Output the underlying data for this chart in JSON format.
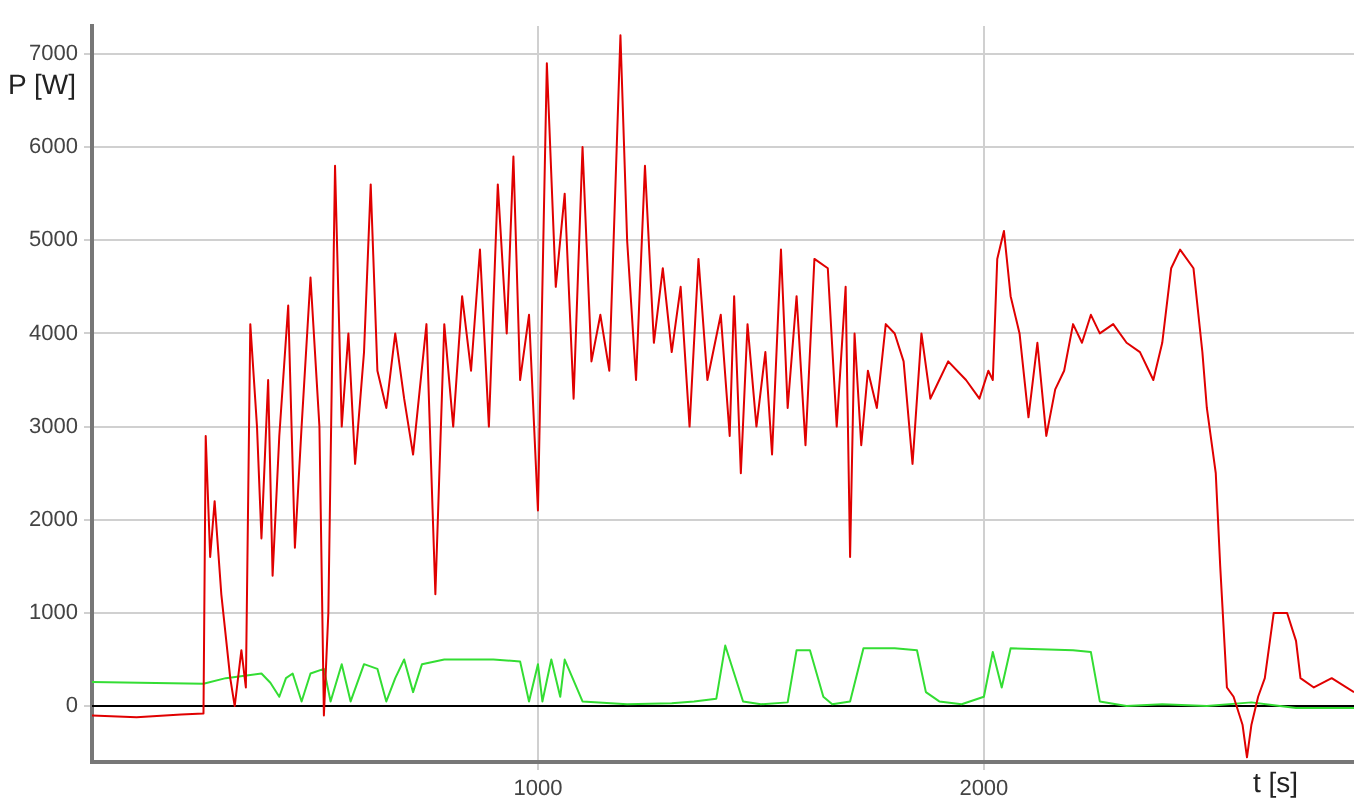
{
  "chart_data": {
    "type": "line",
    "xlabel": "t [s]",
    "ylabel": "P [W]",
    "xlim": [
      0,
      2830
    ],
    "ylim": [
      -600,
      7300
    ],
    "xticks": [
      1000,
      2000
    ],
    "yticks": [
      0,
      1000,
      2000,
      3000,
      4000,
      5000,
      6000,
      7000
    ],
    "grid": true,
    "legend": false,
    "marker": "none",
    "line_style": "solid",
    "ref_lines": [
      {
        "axis": "y",
        "value": 0,
        "color": "#000000"
      }
    ],
    "series": [
      {
        "color": "#e00000",
        "x": [
          0,
          100,
          200,
          250,
          255,
          265,
          275,
          290,
          310,
          320,
          335,
          345,
          355,
          370,
          380,
          395,
          405,
          420,
          440,
          455,
          470,
          490,
          510,
          520,
          530,
          545,
          560,
          575,
          590,
          610,
          625,
          640,
          660,
          680,
          700,
          720,
          750,
          770,
          790,
          810,
          830,
          850,
          870,
          890,
          910,
          930,
          945,
          960,
          980,
          1000,
          1020,
          1040,
          1060,
          1080,
          1100,
          1120,
          1140,
          1160,
          1185,
          1200,
          1220,
          1240,
          1260,
          1280,
          1300,
          1320,
          1340,
          1360,
          1380,
          1410,
          1430,
          1440,
          1455,
          1470,
          1490,
          1510,
          1525,
          1545,
          1560,
          1580,
          1600,
          1620,
          1650,
          1670,
          1690,
          1700,
          1710,
          1725,
          1740,
          1760,
          1780,
          1800,
          1820,
          1840,
          1860,
          1880,
          1900,
          1920,
          1960,
          1990,
          2010,
          2020,
          2030,
          2045,
          2060,
          2080,
          2100,
          2120,
          2140,
          2160,
          2180,
          2200,
          2220,
          2240,
          2260,
          2290,
          2320,
          2350,
          2380,
          2400,
          2420,
          2440,
          2470,
          2490,
          2500,
          2520,
          2530,
          2545,
          2560,
          2580,
          2590,
          2600,
          2615,
          2630,
          2650,
          2680,
          2700,
          2710,
          2740,
          2780,
          2830
        ],
        "values": [
          -100,
          -120,
          -90,
          -80,
          2900,
          1600,
          2200,
          1200,
          300,
          0,
          600,
          200,
          4100,
          3000,
          1800,
          3500,
          1400,
          2900,
          4300,
          1700,
          3000,
          4600,
          3000,
          -100,
          1000,
          5800,
          3000,
          4000,
          2600,
          3800,
          5600,
          3600,
          3200,
          4000,
          3300,
          2700,
          4100,
          1200,
          4100,
          3000,
          4400,
          3600,
          4900,
          3000,
          5600,
          4000,
          5900,
          3500,
          4200,
          2100,
          6900,
          4500,
          5500,
          3300,
          6000,
          3700,
          4200,
          3600,
          7200,
          5000,
          3500,
          5800,
          3900,
          4700,
          3800,
          4500,
          3000,
          4800,
          3500,
          4200,
          2900,
          4400,
          2500,
          4100,
          3000,
          3800,
          2700,
          4900,
          3200,
          4400,
          2800,
          4800,
          4700,
          3000,
          4500,
          1600,
          4000,
          2800,
          3600,
          3200,
          4100,
          4000,
          3700,
          2600,
          4000,
          3300,
          3500,
          3700,
          3500,
          3300,
          3600,
          3500,
          4800,
          5100,
          4400,
          4000,
          3100,
          3900,
          2900,
          3400,
          3600,
          4100,
          3900,
          4200,
          4000,
          4100,
          3900,
          3800,
          3500,
          3900,
          4700,
          4900,
          4700,
          3800,
          3200,
          2500,
          1500,
          200,
          100,
          -200,
          -550,
          -200,
          100,
          300,
          1000,
          1000,
          700,
          300,
          200,
          300,
          150
        ]
      },
      {
        "color": "#33dd33",
        "x": [
          0,
          250,
          300,
          380,
          400,
          420,
          435,
          450,
          470,
          490,
          520,
          535,
          560,
          580,
          610,
          640,
          660,
          680,
          700,
          720,
          740,
          790,
          900,
          960,
          980,
          1000,
          1010,
          1030,
          1050,
          1060,
          1100,
          1200,
          1300,
          1350,
          1400,
          1420,
          1460,
          1500,
          1560,
          1580,
          1610,
          1640,
          1660,
          1700,
          1730,
          1800,
          1850,
          1870,
          1900,
          1950,
          2000,
          2020,
          2040,
          2060,
          2200,
          2240,
          2260,
          2320,
          2400,
          2500,
          2600,
          2700,
          2830
        ],
        "values": [
          260,
          240,
          300,
          350,
          250,
          100,
          300,
          350,
          50,
          350,
          400,
          50,
          450,
          50,
          450,
          400,
          50,
          300,
          500,
          150,
          450,
          500,
          500,
          480,
          50,
          450,
          50,
          500,
          100,
          500,
          50,
          20,
          30,
          50,
          80,
          650,
          50,
          20,
          40,
          600,
          600,
          100,
          20,
          50,
          620,
          620,
          600,
          150,
          50,
          20,
          100,
          580,
          200,
          620,
          600,
          580,
          50,
          0,
          20,
          0,
          40,
          -20,
          -20
        ]
      }
    ]
  }
}
